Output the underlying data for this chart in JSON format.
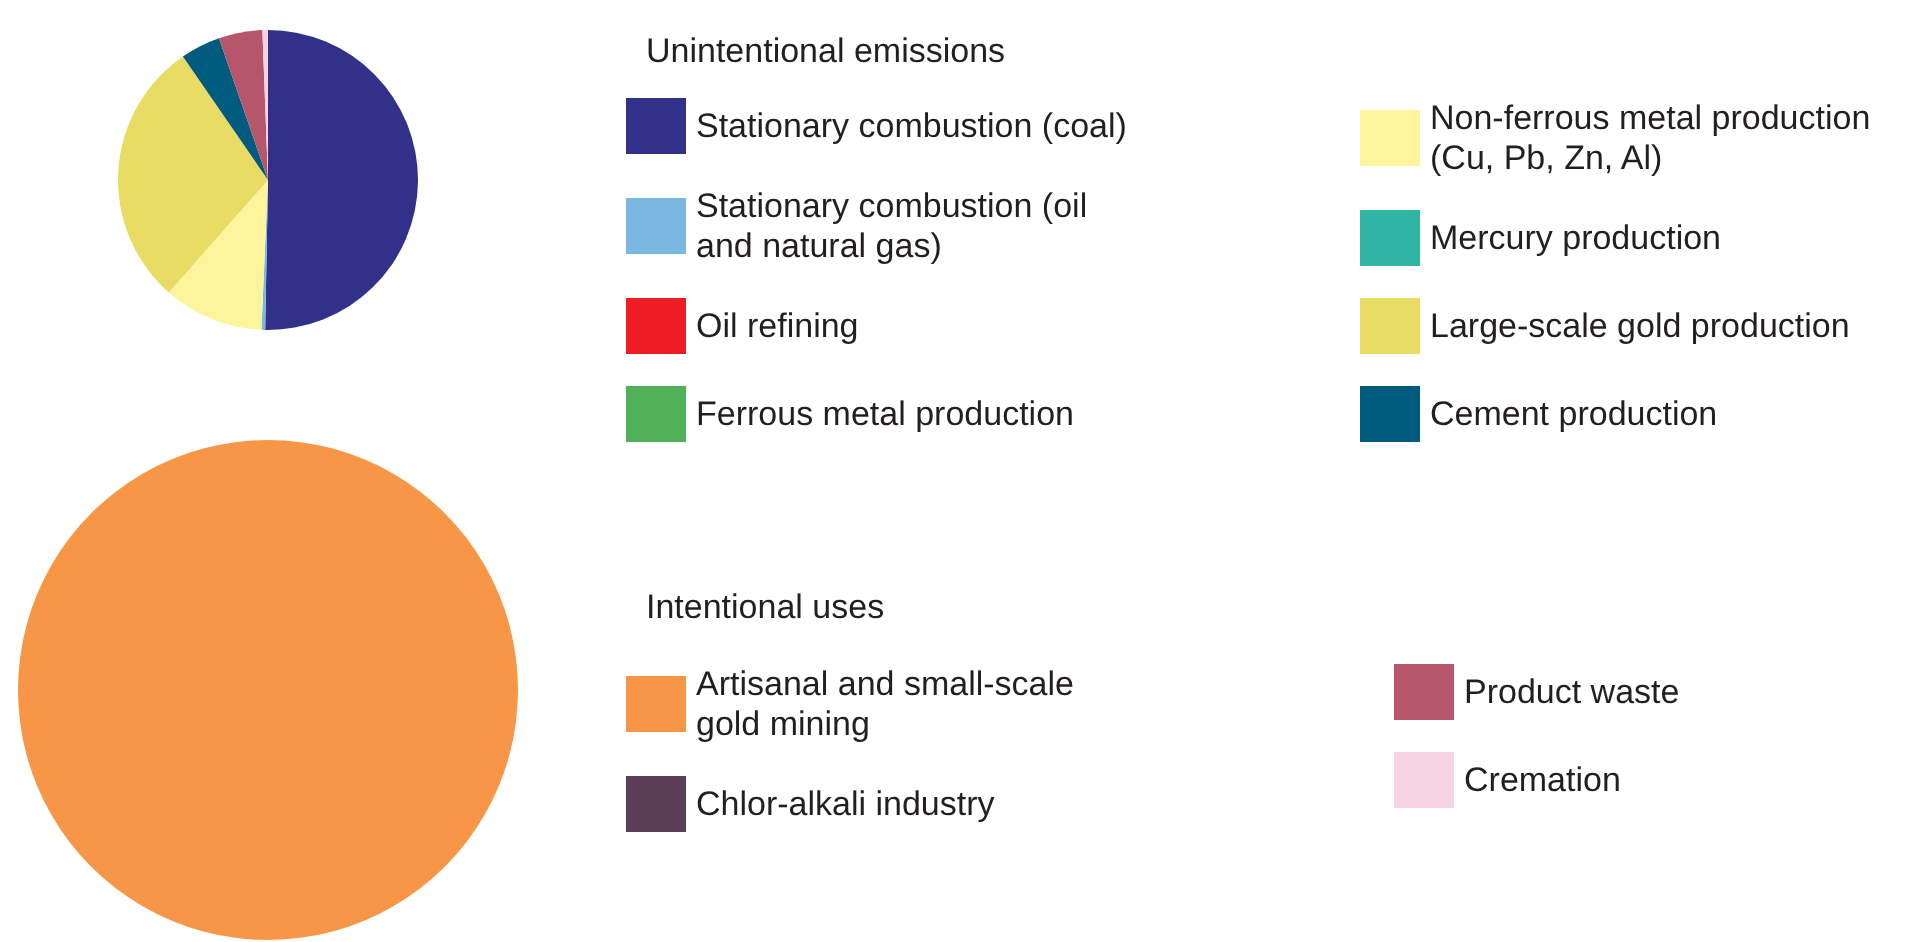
{
  "chart_data": [
    {
      "type": "pie",
      "legend_title": "Unintentional emissions",
      "legend": "right",
      "categories": [
        "Stationary combustion (coal)",
        "Stationary combustion (oil and natural gas)",
        "Oil refining",
        "Ferrous metal production",
        "Non-ferrous metal production (Cu, Pb, Zn, Al)",
        "Mercury production",
        "Large-scale gold production",
        "Cement production",
        "Product waste",
        "Cremation"
      ],
      "values": [
        50.3,
        0.4,
        0,
        0,
        10.8,
        0,
        28.9,
        4.3,
        4.7,
        0.6
      ],
      "colors": [
        "#31318a",
        "#7ab8e2",
        "#ee1c25",
        "#52b05a",
        "#fdf49c",
        "#30b5a5",
        "#e8dc65",
        "#005b7f",
        "#b5566a",
        "#f8d3e4"
      ]
    },
    {
      "type": "pie",
      "legend_title": "Intentional uses",
      "legend": "right",
      "categories": [
        "Artisanal and small-scale gold mining",
        "Chlor-alkali industry"
      ],
      "values": [
        100,
        0
      ],
      "colors": [
        "#f79646",
        "#5b3d55"
      ]
    }
  ]
}
